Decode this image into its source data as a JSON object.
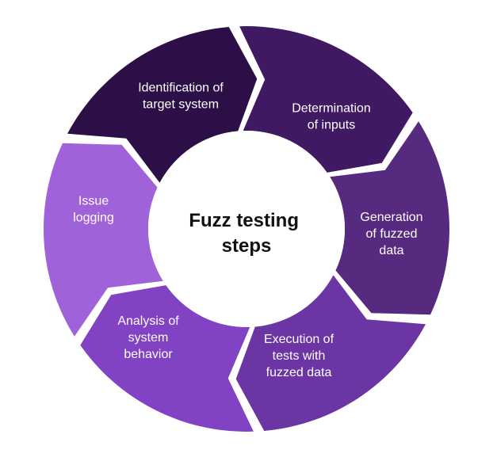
{
  "center_title": [
    "Fuzz testing",
    "steps"
  ],
  "steps": [
    {
      "lines": [
        "Identification of",
        "target system"
      ],
      "color": "#2c0f47"
    },
    {
      "lines": [
        "Determination",
        "of inputs"
      ],
      "color": "#3f1a63"
    },
    {
      "lines": [
        "Generation",
        "of fuzzed",
        "data"
      ],
      "color": "#552a7f"
    },
    {
      "lines": [
        "Execution of",
        "tests with",
        "fuzzed data"
      ],
      "color": "#6b35a3"
    },
    {
      "lines": [
        "Analysis of",
        "system",
        "behavior"
      ],
      "color": "#8143c4"
    },
    {
      "lines": [
        "Issue",
        "logging"
      ],
      "color": "#a062d8"
    }
  ]
}
